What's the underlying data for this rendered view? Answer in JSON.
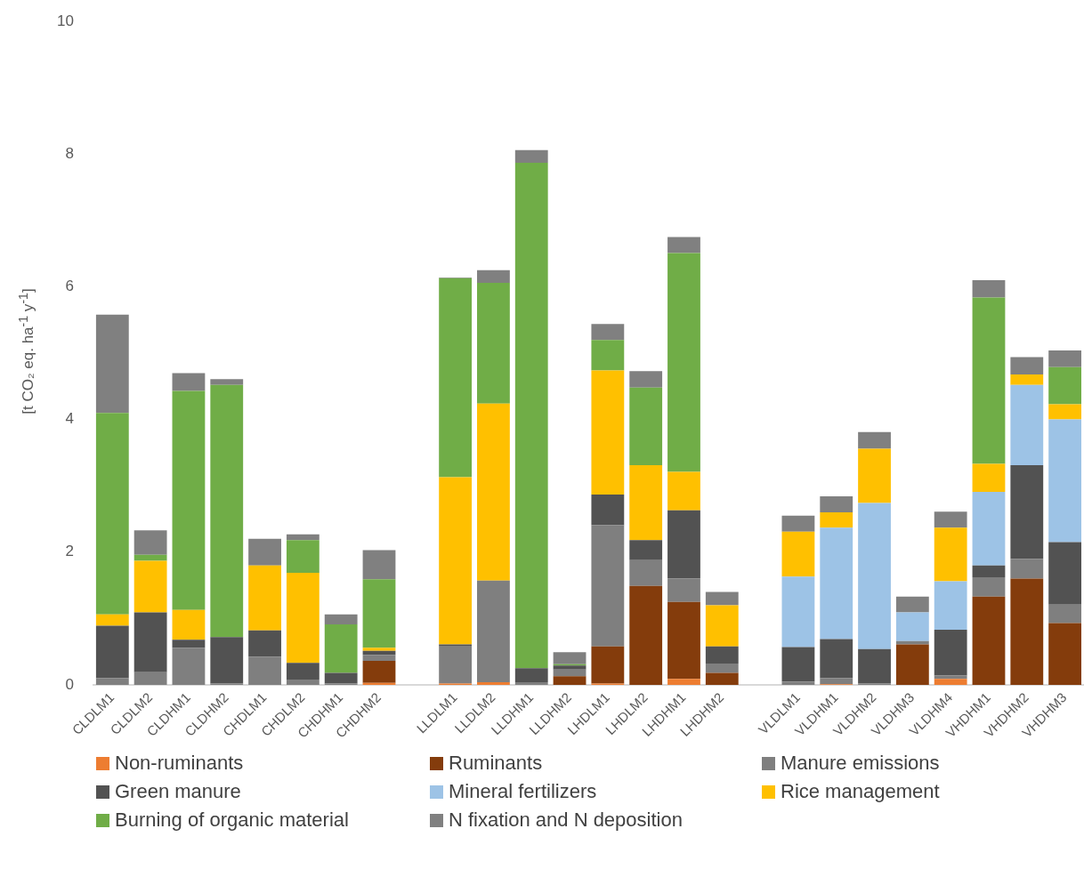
{
  "chart_data": {
    "type": "bar",
    "stacked": true,
    "ylabel": "[t CO₂ eq. ha$^{-1}$ y$^{-1}$]",
    "ylim": [
      0,
      10
    ],
    "yticks": [
      0,
      2,
      4,
      6,
      8,
      10
    ],
    "grid": false,
    "legend": "bottom",
    "categories": [
      "CLDLM1",
      "CLDLM2",
      "CLDHM1",
      "CLDHM2",
      "CHDLM1",
      "CHDLM2",
      "CHDHM1",
      "CHDHM2",
      null,
      "LLDLM1",
      "LLDLM2",
      "LLDHM1",
      "LLDHM2",
      "LHDLM1",
      "LHDLM2",
      "LHDHM1",
      "LHDHM2",
      null,
      "VLDLM1",
      "VLDHM1",
      "VLDHM2",
      "VLDHM3",
      "VLDHM4",
      "VHDHM1",
      "VHDHM2",
      "VHDHM3"
    ],
    "series": [
      {
        "name": "Non-ruminants",
        "color": "#ed7d31",
        "values": [
          0,
          0,
          0,
          0,
          0,
          0,
          0,
          0.03,
          null,
          0.02,
          0.04,
          0,
          0,
          0.02,
          0,
          0.09,
          0,
          null,
          0,
          0.01,
          0,
          0,
          0.09,
          0,
          0,
          0
        ]
      },
      {
        "name": "Ruminants",
        "color": "#843c0c",
        "values": [
          0,
          0,
          0,
          0,
          0,
          0,
          0,
          0.33,
          null,
          0,
          0,
          0,
          0.13,
          0.56,
          1.49,
          1.16,
          0.18,
          null,
          0,
          0,
          0,
          0.61,
          0,
          1.33,
          1.6,
          0.93
        ]
      },
      {
        "name": "Manure emissions",
        "color": "#7f7f7f",
        "values": [
          0.1,
          0.19,
          0.56,
          0.02,
          0.42,
          0.08,
          0.02,
          0.09,
          null,
          0.56,
          1.53,
          0.04,
          0.1,
          1.83,
          0.39,
          0.35,
          0.14,
          null,
          0.05,
          0.09,
          0.02,
          0.05,
          0.05,
          0.29,
          0.3,
          0.28
        ]
      },
      {
        "name": "Green manure",
        "color": "#525252",
        "values": [
          0.79,
          0.9,
          0.12,
          0.7,
          0.4,
          0.25,
          0.16,
          0.06,
          null,
          0.03,
          0,
          0.21,
          0.06,
          0.46,
          0.3,
          1.03,
          0.26,
          null,
          0.52,
          0.59,
          0.52,
          0,
          0.69,
          0.18,
          1.41,
          0.94
        ]
      },
      {
        "name": "Mineral fertilizers",
        "color": "#9dc3e6",
        "values": [
          0,
          0,
          0,
          0,
          0,
          0,
          0,
          0,
          null,
          0,
          0,
          0,
          0,
          0,
          0,
          0,
          0,
          null,
          1.06,
          1.68,
          2.2,
          0.43,
          0.73,
          1.11,
          1.21,
          1.85
        ]
      },
      {
        "name": "Rice management",
        "color": "#ffc000",
        "values": [
          0.17,
          0.78,
          0.45,
          0,
          0.98,
          1.36,
          0,
          0.05,
          null,
          2.52,
          2.67,
          0,
          0,
          1.87,
          1.13,
          0.58,
          0.62,
          null,
          0.68,
          0.23,
          0.82,
          0,
          0.81,
          0.42,
          0.16,
          0.23
        ]
      },
      {
        "name": "Burning of organic material",
        "color": "#70ad47",
        "values": [
          3.04,
          0.09,
          3.3,
          3.8,
          0,
          0.49,
          0.73,
          1.03,
          null,
          3.0,
          1.82,
          7.62,
          0.02,
          0.46,
          1.17,
          3.3,
          0,
          null,
          0,
          0,
          0,
          0,
          0,
          2.51,
          0,
          0.56
        ]
      },
      {
        "name": "N fixation and N deposition",
        "color": "#808080",
        "values": [
          1.48,
          0.37,
          0.27,
          0.09,
          0.4,
          0.09,
          0.15,
          0.44,
          null,
          0.01,
          0.19,
          0.19,
          0.18,
          0.24,
          0.25,
          0.24,
          0.2,
          null,
          0.24,
          0.24,
          0.25,
          0.24,
          0.24,
          0.26,
          0.26,
          0.25
        ]
      }
    ]
  }
}
